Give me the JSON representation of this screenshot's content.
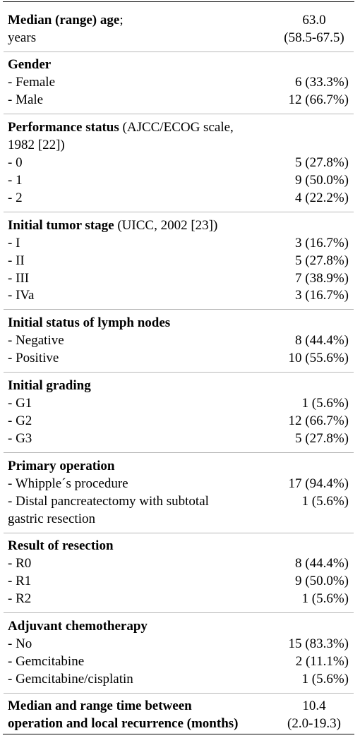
{
  "age": {
    "label_bold": "Median (range) age",
    "label_rest": ";",
    "label_line2": "years",
    "value": "63.0",
    "range": "(58.5-67.5)"
  },
  "gender": {
    "header": "Gender",
    "rows": [
      {
        "label": "- Female",
        "value": "6 (33.3%)"
      },
      {
        "label": "- Male",
        "value": "12 (66.7%)"
      }
    ]
  },
  "performance": {
    "header_bold": "Performance status",
    "header_rest": " (AJCC/ECOG scale,",
    "header_line2": "1982 [22])",
    "rows": [
      {
        "label": "- 0",
        "value": "5 (27.8%)"
      },
      {
        "label": "- 1",
        "value": "9 (50.0%)"
      },
      {
        "label": "- 2",
        "value": "4 (22.2%)"
      }
    ]
  },
  "tumor_stage": {
    "header_bold": "Initial tumor stage",
    "header_rest": " (UICC, 2002 [23])",
    "rows": [
      {
        "label": "- I",
        "value": "3 (16.7%)"
      },
      {
        "label": "- II",
        "value": "5 (27.8%)"
      },
      {
        "label": "- III",
        "value": "7 (38.9%)"
      },
      {
        "label": "- IVa",
        "value": "3 (16.7%)"
      }
    ]
  },
  "lymph_nodes": {
    "header": "Initial status of lymph nodes",
    "rows": [
      {
        "label": "- Negative",
        "value": "8 (44.4%)"
      },
      {
        "label": "- Positive",
        "value": "10 (55.6%)"
      }
    ]
  },
  "grading": {
    "header": "Initial grading",
    "rows": [
      {
        "label": "- G1",
        "value": "1 (5.6%)"
      },
      {
        "label": "- G2",
        "value": "12 (66.7%)"
      },
      {
        "label": "- G3",
        "value": "5 (27.8%)"
      }
    ]
  },
  "operation": {
    "header": "Primary operation",
    "rows": [
      {
        "label": "- Whipple´s procedure",
        "value": "17 (94.4%)"
      },
      {
        "label": "- Distal pancreatectomy with subtotal",
        "label_line2": "gastric resection",
        "value": "1 (5.6%)"
      }
    ]
  },
  "resection": {
    "header": "Result of resection",
    "rows": [
      {
        "label": "- R0",
        "value": "8 (44.4%)"
      },
      {
        "label": "- R1",
        "value": "9 (50.0%)"
      },
      {
        "label": "- R2",
        "value": "1 (5.6%)"
      }
    ]
  },
  "chemo": {
    "header": "Adjuvant chemotherapy",
    "rows": [
      {
        "label": "- No",
        "value": "15 (83.3%)"
      },
      {
        "label": "- Gemcitabine",
        "value": "2 (11.1%)"
      },
      {
        "label": "- Gemcitabine/cisplatin",
        "value": "1 (5.6%)"
      }
    ]
  },
  "recurrence": {
    "label_line1": "Median and range time between",
    "label_line2": "operation and local recurrence (months)",
    "value": "10.4",
    "range": "(2.0-19.3)"
  }
}
